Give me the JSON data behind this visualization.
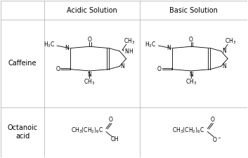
{
  "title_acidic": "Acidic Solution",
  "title_basic": "Basic Solution",
  "row_label_caffeine": "Caffeine",
  "row_label_octanoic": "Octanoic\nacid",
  "bg_color": "#ffffff",
  "line_color": "#aaaaaa",
  "text_color": "#000000",
  "font_size_header": 7,
  "font_size_label": 7,
  "font_size_structure": 5.5,
  "fig_width": 3.53,
  "fig_height": 2.25,
  "dpi": 100,
  "col_div1": 0.175,
  "col_div2": 0.565,
  "row_div1": 0.88,
  "row_div2": 0.32
}
